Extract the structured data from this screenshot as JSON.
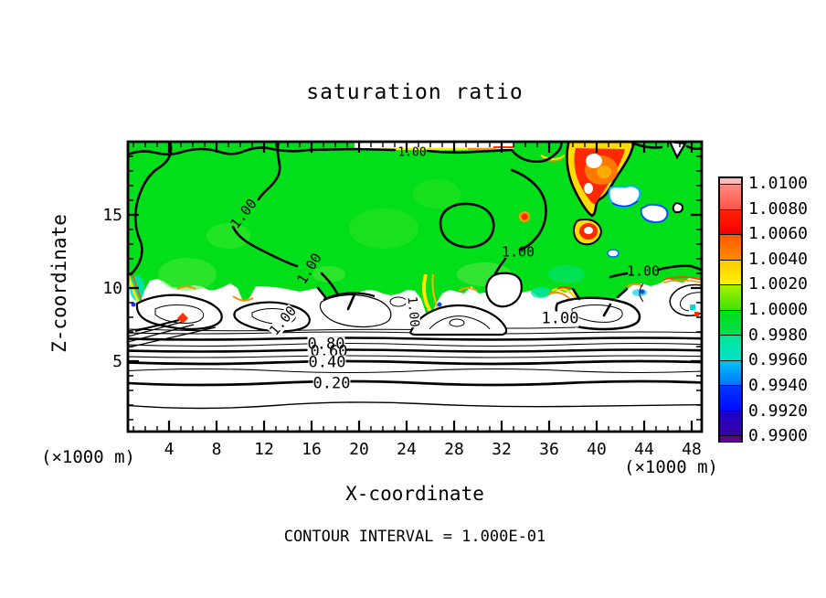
{
  "title": "saturation ratio",
  "footer": {
    "contour_interval": "CONTOUR INTERVAL = 1.000E-01"
  },
  "axes": {
    "x": {
      "label": "X-coordinate",
      "unit_left": "(×1000 m)",
      "unit_right": "(×1000 m)",
      "tick_labels": [
        "4",
        "8",
        "12",
        "16",
        "20",
        "24",
        "28",
        "32",
        "36",
        "40",
        "44",
        "48"
      ]
    },
    "z": {
      "label": "Z-coordinate",
      "tick_labels": [
        "15",
        "10",
        "5"
      ]
    }
  },
  "colorbar": {
    "tick_labels": [
      "1.0100",
      "1.0080",
      "1.0060",
      "1.0040",
      "1.0020",
      "1.0000",
      "0.9980",
      "0.9960",
      "0.9940",
      "0.9920",
      "0.9900"
    ],
    "over_color": "#ffbebe",
    "under_color": "#5f008f",
    "segments": [
      [
        "#ff8c82",
        "#ff5046"
      ],
      [
        "#ff2300",
        "#f20000"
      ],
      [
        "#ff5a00",
        "#ff8c00"
      ],
      [
        "#ffc800",
        "#fff600"
      ],
      [
        "#a8f000",
        "#3ce300"
      ],
      [
        "#00dc14",
        "#00e055"
      ],
      [
        "#00e592",
        "#00e2cc"
      ],
      [
        "#00c4f0",
        "#0072ff"
      ],
      [
        "#0037ff",
        "#000aff"
      ],
      [
        "#1c00cc",
        "#3a00a2"
      ]
    ]
  },
  "contour_labels": [
    "1.00",
    "1.00",
    "1.00",
    "1.00",
    "1.00",
    "1.00",
    "1.00",
    "1.00",
    "0.80",
    "0.60",
    "0.40",
    "0.20"
  ],
  "colors": {
    "field_green": "#00df19",
    "frame": "#000000",
    "background": "#ffffff"
  },
  "chart_data": {
    "type": "heatmap",
    "title": "saturation ratio",
    "xlabel": "X-coordinate (×1000 m)",
    "ylabel": "Z-coordinate (×1000 m)",
    "x_ticks": [
      4,
      8,
      12,
      16,
      20,
      24,
      28,
      32,
      36,
      40,
      44,
      48
    ],
    "z_ticks": [
      5,
      10,
      15
    ],
    "x_range": [
      0.5,
      49.0
    ],
    "z_range": [
      0.2,
      20.0
    ],
    "contour_interval": 0.1,
    "labeled_contour_levels": [
      0.2,
      0.4,
      0.6,
      0.8,
      1.0
    ],
    "fill_levels": {
      "min": 0.99,
      "max": 1.01,
      "step": 0.001
    },
    "colorbar_tick_values": [
      1.01,
      1.008,
      1.006,
      1.004,
      1.002,
      1.0,
      0.998,
      0.996,
      0.994,
      0.992,
      0.99
    ],
    "legend_position": "right",
    "grid": false,
    "features": [
      "near-saturated region (ratio ~1.000, green fill) fills the domain above z ~ 10",
      "supersaturated pocket above 1.010 (red with white core) near x ~ 40-43, z ~ 13-19; smaller pocket near x ~ 41, z ~ 13",
      "thin super/sub-saturated fringes (yellow/orange/red and cyan/blue) along the cloud boundary near z ~ 9-10",
      "dry stratified layers below z ~ 6 with horizontal contours from 0.90 down to 0.10",
      "turbulent band of closed contour cells between z ~ 6.5 and 10 (values below 0.99, unfilled/white)"
    ]
  }
}
